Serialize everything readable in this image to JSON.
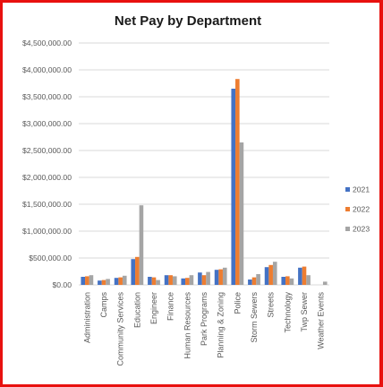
{
  "chart_data": {
    "type": "bar",
    "title": "Net Pay by Department",
    "xlabel": "",
    "ylabel": "",
    "ylim": [
      0,
      4500000
    ],
    "yticks": [
      "$0.00",
      "$500,000.00",
      "$1,000,000.00",
      "$1,500,000.00",
      "$2,000,000.00",
      "$2,500,000.00",
      "$3,000,000.00",
      "$3,500,000.00",
      "$4,000,000.00",
      "$4,500,000.00"
    ],
    "grid": true,
    "legend_position": "right",
    "categories": [
      "Administration",
      "Camps",
      "Community Services",
      "Education",
      "Engineer",
      "Finance",
      "Human Resources",
      "Park Programs",
      "Planning & Zoning",
      "Police",
      "Storm Sewers",
      "Streets",
      "Technology",
      "Twp Sewer",
      "Weather Events"
    ],
    "series": [
      {
        "name": "2021",
        "color": "#4472c4",
        "values": [
          150000,
          80000,
          130000,
          480000,
          150000,
          180000,
          120000,
          230000,
          280000,
          3650000,
          100000,
          330000,
          150000,
          320000,
          0
        ]
      },
      {
        "name": "2022",
        "color": "#ed7d31",
        "values": [
          160000,
          90000,
          140000,
          520000,
          140000,
          180000,
          130000,
          180000,
          290000,
          3830000,
          140000,
          370000,
          160000,
          340000,
          0
        ]
      },
      {
        "name": "2023",
        "color": "#a5a5a5",
        "values": [
          180000,
          110000,
          170000,
          1480000,
          90000,
          160000,
          180000,
          240000,
          320000,
          2650000,
          200000,
          430000,
          120000,
          180000,
          60000
        ]
      }
    ]
  }
}
